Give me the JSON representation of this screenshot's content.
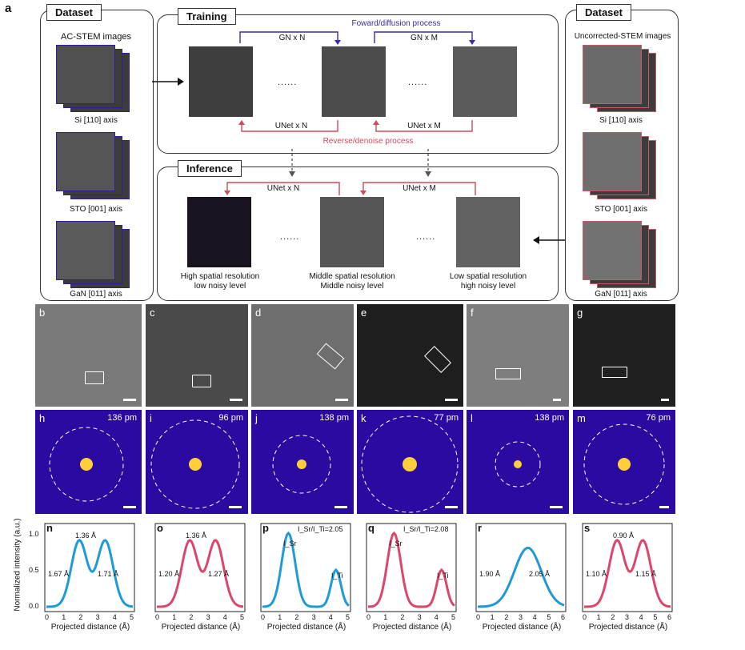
{
  "figure_label": "a",
  "left_dataset": {
    "tag": "Dataset",
    "title": "AC-STEM images",
    "stacks": [
      "Si [110] axis",
      "STO [001] axis",
      "GaN [011] axis"
    ]
  },
  "right_dataset": {
    "tag": "Dataset",
    "title": "Uncorrected-STEM images",
    "stacks": [
      "Si [110] axis",
      "STO [001] axis",
      "GaN [011] axis"
    ]
  },
  "training": {
    "tag": "Training",
    "forward_label": "Foward/diffusion process",
    "reverse_label": "Reverse/denoise process",
    "gn_n": "GN x N",
    "gn_m": "GN x M",
    "unet_n": "UNet x N",
    "unet_m": "UNet x M",
    "dots": "......"
  },
  "inference": {
    "tag": "Inference",
    "unet_n": "UNet x N",
    "unet_m": "UNet x M",
    "dots": "......",
    "captions": [
      [
        "High spatial resolution",
        "low noisy level"
      ],
      [
        "Middle spatial resolution",
        "Middle noisy level"
      ],
      [
        "Low spatial resolution",
        "high noisy level"
      ]
    ]
  },
  "stem_panels": [
    "b",
    "c",
    "d",
    "e",
    "f",
    "g"
  ],
  "fft_panels": [
    {
      "label": "h",
      "note": "136 pm"
    },
    {
      "label": "i",
      "note": "96 pm"
    },
    {
      "label": "j",
      "note": "138 pm"
    },
    {
      "label": "k",
      "note": "77 pm"
    },
    {
      "label": "l",
      "note": "138 pm"
    },
    {
      "label": "m",
      "note": "76 pm"
    }
  ],
  "profiles": {
    "ylabel": "Normalized intensity (a.u.)",
    "xlabel": "Projected distance (Å)",
    "yticks": [
      "0.0",
      "0.5",
      "1.0"
    ],
    "xticks5": [
      "0",
      "1",
      "2",
      "3",
      "4",
      "5"
    ],
    "xticks6": [
      "0",
      "1",
      "2",
      "3",
      "4",
      "5",
      "6"
    ],
    "colors": {
      "blue": "#1f9ad8",
      "pink": "#d9476a"
    },
    "plots": [
      {
        "label": "n",
        "top": "1.36 Å",
        "left": "1.67 Å",
        "right": "1.71 Å"
      },
      {
        "label": "o",
        "top": "1.36 Å",
        "left": "1.20 Å",
        "right": "1.27 Å"
      },
      {
        "label": "p",
        "ratio": "I_Sr/I_Ti=2.05",
        "sr": "I_Sr",
        "ti": "I_Ti"
      },
      {
        "label": "q",
        "ratio": "I_Sr/I_Ti=2.08",
        "sr": "I_Sr",
        "ti": "I_Ti"
      },
      {
        "label": "r",
        "left": "1.90 Å",
        "right": "2.05 Å"
      },
      {
        "label": "s",
        "top": "0.90 Å",
        "left": "1.10 Å",
        "right": "1.15 Å"
      }
    ]
  }
}
